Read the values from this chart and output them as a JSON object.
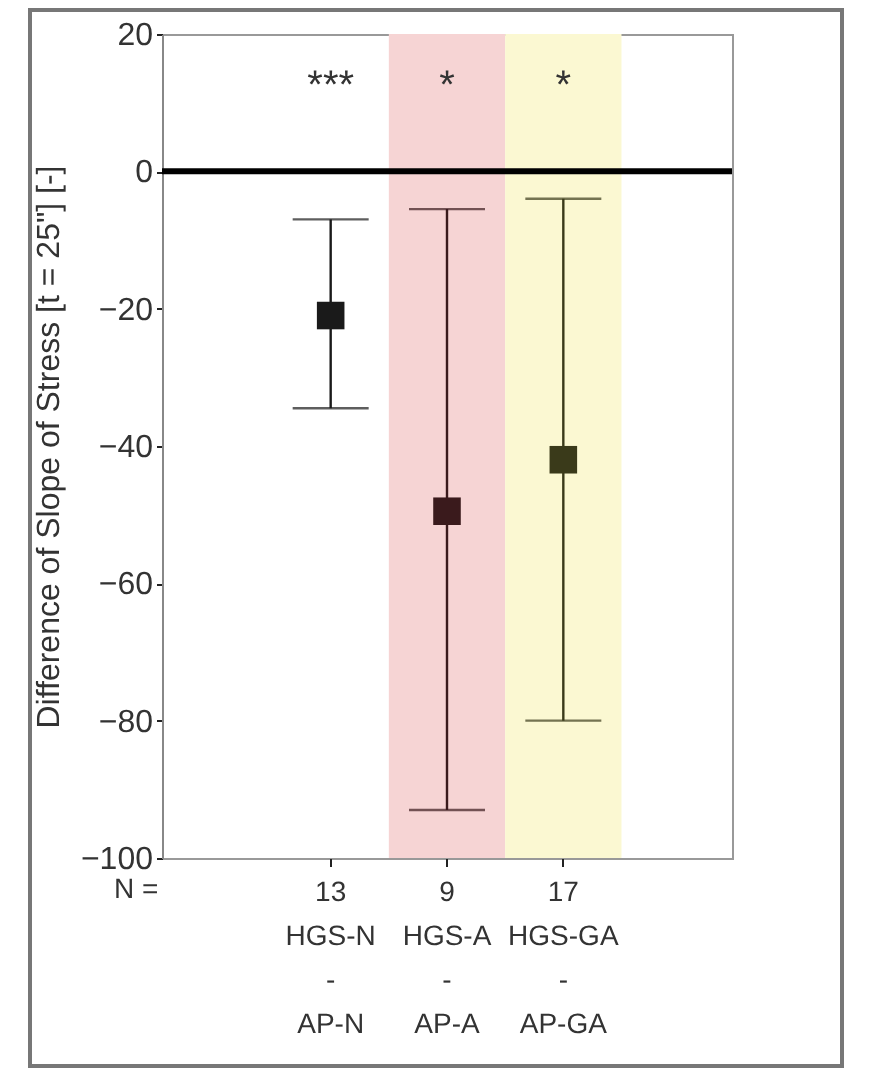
{
  "chart_data": {
    "type": "scatter",
    "ylabel": "Difference of Slope of Stress [t = 25\"] [-]",
    "categories": [
      "13\nHGS-N\n-\nAP-N",
      "9\nHGS-A\n-\nAP-A",
      "17\nHGS-GA\n-\nAP-GA"
    ],
    "values": [
      -21,
      -49.5,
      -42
    ],
    "colors": [
      "#1a1a1a",
      "#3a1a1c",
      "#3a3a1a"
    ],
    "errors": [
      [
        -34.5,
        -7
      ],
      [
        -93,
        -5.5
      ],
      [
        -80,
        -4
      ]
    ],
    "marker": "square",
    "ylim": [
      -100,
      20
    ],
    "yticks": [
      -100,
      -80,
      -60,
      -40,
      -20,
      0,
      20
    ],
    "grid": false,
    "ref_lines": [
      {
        "axis": "y",
        "value": 0,
        "color": "#000000"
      }
    ],
    "bands": [
      {
        "axis": "x",
        "from": "9\nHGS-A\n-\nAP-A",
        "to": "9\nHGS-A\n-\nAP-A",
        "color": "#f6d4d4"
      },
      {
        "axis": "x",
        "from": "17\nHGS-GA\n-\nAP-GA",
        "to": "17\nHGS-GA\n-\nAP-GA",
        "color": "#fbf8d2"
      }
    ],
    "annotations": [
      "***",
      "*",
      "*",
      "N ="
    ]
  }
}
